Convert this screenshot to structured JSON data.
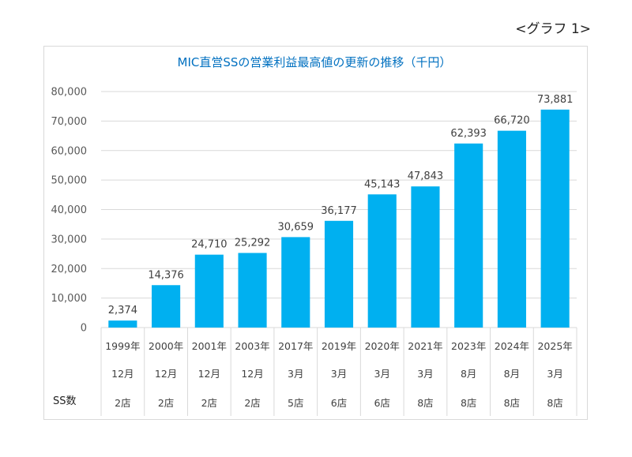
{
  "graph_label": "<グラフ 1>",
  "ss_label": "SS数",
  "chart_data": {
    "type": "bar",
    "title": "MIC直営SSの営業利益最高値の更新の推移（千円）",
    "color": "#00b0f0",
    "ylim": [
      0,
      80000
    ],
    "yticks": [
      "80,000",
      "70,000",
      "60,000",
      "50,000",
      "40,000",
      "30,000",
      "20,000",
      "10,000",
      "0"
    ],
    "grid": true,
    "categories": [
      {
        "year": "1999年",
        "month": "12月",
        "stores": "2店"
      },
      {
        "year": "2000年",
        "month": "12月",
        "stores": "2店"
      },
      {
        "year": "2001年",
        "month": "12月",
        "stores": "2店"
      },
      {
        "year": "2003年",
        "month": "12月",
        "stores": "2店"
      },
      {
        "year": "2017年",
        "month": "3月",
        "stores": "5店"
      },
      {
        "year": "2019年",
        "month": "3月",
        "stores": "6店"
      },
      {
        "year": "2020年",
        "month": "3月",
        "stores": "6店"
      },
      {
        "year": "2021年",
        "month": "3月",
        "stores": "8店"
      },
      {
        "year": "2023年",
        "month": "8月",
        "stores": "8店"
      },
      {
        "year": "2024年",
        "month": "8月",
        "stores": "8店"
      },
      {
        "year": "2025年",
        "month": "3月",
        "stores": "8店"
      }
    ],
    "values": [
      2374,
      14376,
      24710,
      25292,
      30659,
      36177,
      45143,
      47843,
      62393,
      66720,
      73881
    ],
    "value_labels": [
      "2,374",
      "14,376",
      "24,710",
      "25,292",
      "30,659",
      "36,177",
      "45,143",
      "47,843",
      "62,393",
      "66,720",
      "73,881"
    ]
  }
}
